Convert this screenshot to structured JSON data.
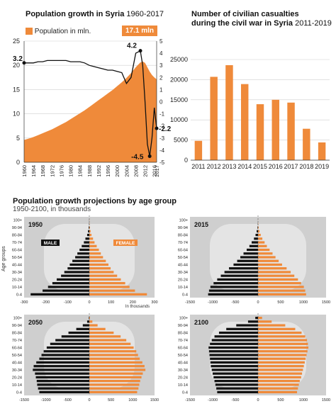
{
  "colors": {
    "orange": "#ef8a3a",
    "black": "#111111",
    "gray_panel": "#cfcfcf",
    "gray_light": "#e8e8e8",
    "grid": "#bdbdbd"
  },
  "top_left": {
    "title_bold": "Population growth in Syria",
    "title_light": "1960-2017",
    "legend_label": "Population in mln.",
    "callout": "17.1 mln"
  },
  "top_right": {
    "title_line1": "Number of civilian casualties",
    "title_line2_bold": "during the civil war in Syria",
    "title_line2_light": "2011-2019"
  },
  "bottom": {
    "title": "Population growth projections by age group",
    "subtitle": "1950-2100, in thousands",
    "ylabel": "Age groups",
    "male_label": "MALE",
    "female_label": "FEMALE",
    "xunit": "In thousands"
  },
  "chart_data": [
    {
      "type": "area",
      "title": "Population growth in Syria 1960-2017",
      "x": [
        1960,
        1962,
        1964,
        1966,
        1968,
        1970,
        1972,
        1974,
        1976,
        1978,
        1980,
        1982,
        1984,
        1986,
        1988,
        1990,
        1992,
        1994,
        1996,
        1998,
        2000,
        2002,
        2004,
        2006,
        2008,
        2010,
        2011,
        2012,
        2013,
        2014,
        2015,
        2016,
        2017
      ],
      "series": [
        {
          "name": "Population in mln.",
          "axis": "left",
          "values": [
            4.6,
            4.9,
            5.2,
            5.6,
            6.0,
            6.4,
            6.8,
            7.3,
            7.8,
            8.3,
            8.9,
            9.5,
            10.1,
            10.7,
            11.4,
            12.1,
            12.8,
            13.5,
            14.2,
            14.9,
            15.7,
            16.5,
            17.4,
            18.4,
            19.6,
            20.6,
            20.8,
            20.5,
            19.6,
            18.7,
            18.0,
            17.5,
            17.1
          ]
        },
        {
          "name": "Population growth",
          "axis": "right",
          "values": [
            3.2,
            3.2,
            3.2,
            3.3,
            3.3,
            3.4,
            3.4,
            3.4,
            3.4,
            3.4,
            3.3,
            3.3,
            3.3,
            3.2,
            3.0,
            2.9,
            2.8,
            2.7,
            2.6,
            2.6,
            2.5,
            2.4,
            1.5,
            2.0,
            4.0,
            4.2,
            3.0,
            0.0,
            -3.5,
            -4.5,
            -3.0,
            -0.5,
            -2.2
          ]
        }
      ],
      "xticks": [
        "1960",
        "1964",
        "1968",
        "1972",
        "1976",
        "1980",
        "1984",
        "1988",
        "1992",
        "1996",
        "2000",
        "2004",
        "2008",
        "2012",
        "2016",
        "2017"
      ],
      "ylim_left": [
        0,
        25
      ],
      "yticks_left": [
        "0",
        "5",
        "10",
        "15",
        "20",
        "25"
      ],
      "ylim_right": [
        -5,
        5
      ],
      "yticks_right": [
        "-5",
        "-4",
        "-3",
        "-2",
        "-1",
        "0",
        "1",
        "2",
        "3",
        "4",
        "5"
      ],
      "annotations": [
        "3.2",
        "4.2",
        "-4.5",
        "-2.2"
      ]
    },
    {
      "type": "bar",
      "title": "Number of civilian casualties during the civil war in Syria 2011-2019",
      "categories": [
        "2011",
        "2012",
        "2013",
        "2014",
        "2015",
        "2016",
        "2017",
        "2018",
        "2019"
      ],
      "values": [
        4800,
        20700,
        23600,
        18900,
        13900,
        15000,
        14300,
        7800,
        4400
      ],
      "ylim": [
        0,
        25000
      ],
      "yticks": [
        "0",
        "5000",
        "10000",
        "15000",
        "20000",
        "25000"
      ]
    },
    {
      "type": "bar",
      "title": "1950",
      "orientation": "horizontal-pyramid",
      "categories": [
        "0-4",
        "5-9",
        "10-14",
        "15-19",
        "20-24",
        "25-29",
        "30-34",
        "35-39",
        "40-44",
        "45-49",
        "50-54",
        "55-59",
        "60-64",
        "65-69",
        "70-74",
        "75-79",
        "80-84",
        "85-89",
        "90-94",
        "95-99",
        "100+"
      ],
      "category_ticks": [
        "0-4",
        "10-14",
        "20-24",
        "30-34",
        "40-44",
        "50-54",
        "60-64",
        "70-74",
        "80-84",
        "90-94",
        "100+"
      ],
      "series": [
        {
          "name": "MALE",
          "values": [
            270,
            215,
            190,
            170,
            150,
            130,
            115,
            100,
            90,
            78,
            65,
            55,
            45,
            35,
            25,
            18,
            10,
            6,
            3,
            1,
            0.5
          ]
        },
        {
          "name": "FEMALE",
          "values": [
            265,
            210,
            185,
            165,
            145,
            128,
            112,
            98,
            88,
            76,
            63,
            53,
            44,
            34,
            24,
            17,
            10,
            6,
            3,
            1,
            0.5
          ]
        }
      ],
      "xlim": [
        -300,
        300
      ],
      "xticks": [
        "-300",
        "-200",
        "-100",
        "0",
        "100",
        "200",
        "300"
      ]
    },
    {
      "type": "bar",
      "title": "2015",
      "orientation": "horizontal-pyramid",
      "categories": [
        "0-4",
        "5-9",
        "10-14",
        "15-19",
        "20-24",
        "25-29",
        "30-34",
        "35-39",
        "40-44",
        "45-49",
        "50-54",
        "55-59",
        "60-64",
        "65-69",
        "70-74",
        "75-79",
        "80-84",
        "85-89",
        "90-94",
        "95-99",
        "100+"
      ],
      "category_ticks": [
        "0-4",
        "10-14",
        "20-24",
        "30-34",
        "40-44",
        "50-54",
        "60-64",
        "70-74",
        "80-84",
        "90-94",
        "100+"
      ],
      "series": [
        {
          "name": "MALE",
          "values": [
            1100,
            1080,
            1050,
            980,
            900,
            820,
            740,
            640,
            540,
            460,
            390,
            320,
            250,
            190,
            140,
            90,
            55,
            30,
            12,
            4,
            1
          ]
        },
        {
          "name": "FEMALE",
          "values": [
            1060,
            1040,
            1010,
            950,
            880,
            800,
            720,
            630,
            530,
            455,
            385,
            320,
            255,
            195,
            145,
            95,
            60,
            32,
            14,
            5,
            1
          ]
        }
      ],
      "xlim": [
        -1500,
        1500
      ],
      "xticks": [
        "-1500",
        "-1000",
        "-500",
        "0",
        "500",
        "1000",
        "1500"
      ]
    },
    {
      "type": "bar",
      "title": "2050",
      "orientation": "horizontal-pyramid",
      "categories": [
        "0-4",
        "5-9",
        "10-14",
        "15-19",
        "20-24",
        "25-29",
        "30-34",
        "35-39",
        "40-44",
        "45-49",
        "50-54",
        "55-59",
        "60-64",
        "65-69",
        "70-74",
        "75-79",
        "80-84",
        "85-89",
        "90-94",
        "95-99",
        "100+"
      ],
      "category_ticks": [
        "0-4",
        "10-14",
        "20-24",
        "30-34",
        "40-44",
        "50-54",
        "60-64",
        "70-74",
        "80-84",
        "90-94",
        "100+"
      ],
      "series": [
        {
          "name": "MALE",
          "values": [
            1150,
            1180,
            1200,
            1210,
            1230,
            1250,
            1300,
            1280,
            1220,
            1150,
            1100,
            1050,
            980,
            900,
            780,
            640,
            480,
            300,
            150,
            50,
            10
          ]
        },
        {
          "name": "FEMALE",
          "values": [
            1100,
            1130,
            1150,
            1170,
            1200,
            1230,
            1290,
            1270,
            1220,
            1160,
            1120,
            1080,
            1020,
            950,
            850,
            720,
            560,
            370,
            190,
            70,
            15
          ]
        }
      ],
      "xlim": [
        -1500,
        1500
      ],
      "xticks": [
        "-1500",
        "-1000",
        "-500",
        "0",
        "500",
        "1000",
        "1500"
      ]
    },
    {
      "type": "bar",
      "title": "2100",
      "orientation": "horizontal-pyramid",
      "categories": [
        "0-4",
        "5-9",
        "10-14",
        "15-19",
        "20-24",
        "25-29",
        "30-34",
        "35-39",
        "40-44",
        "45-49",
        "50-54",
        "55-59",
        "60-64",
        "65-69",
        "70-74",
        "75-79",
        "80-84",
        "85-89",
        "90-94",
        "95-99",
        "100+"
      ],
      "category_ticks": [
        "0-4",
        "10-14",
        "20-24",
        "30-34",
        "40-44",
        "50-54",
        "60-64",
        "70-74",
        "80-84",
        "90-94",
        "100+"
      ],
      "series": [
        {
          "name": "MALE",
          "values": [
            900,
            920,
            940,
            960,
            980,
            1000,
            1020,
            1040,
            1050,
            1060,
            1070,
            1080,
            1090,
            1060,
            1020,
            960,
            860,
            700,
            480,
            220,
            60
          ]
        },
        {
          "name": "FEMALE",
          "values": [
            860,
            880,
            900,
            920,
            950,
            970,
            990,
            1010,
            1030,
            1050,
            1070,
            1090,
            1110,
            1100,
            1080,
            1040,
            960,
            820,
            600,
            300,
            90
          ]
        }
      ],
      "xlim": [
        -1500,
        1500
      ],
      "xticks": [
        "-1500",
        "-1000",
        "-500",
        "0",
        "500",
        "1000",
        "1500"
      ]
    }
  ]
}
